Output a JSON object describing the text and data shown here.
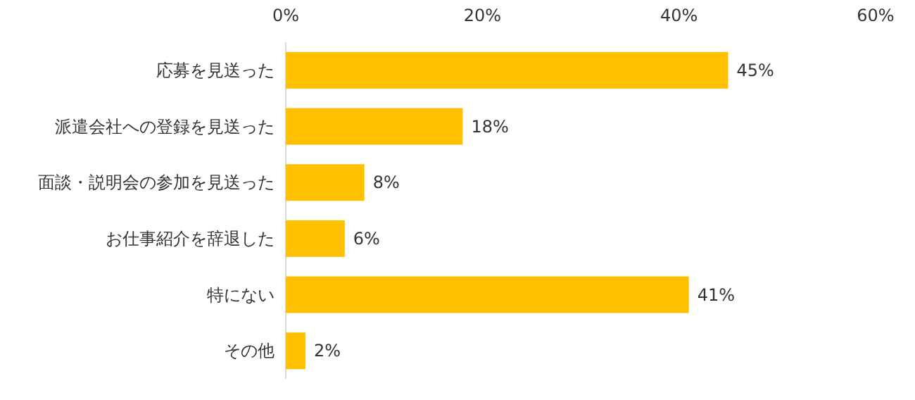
{
  "chart_data": {
    "type": "bar",
    "orientation": "horizontal",
    "categories": [
      "応募を見送った",
      "派遣会社への登録を見送った",
      "面談・説明会の参加を見送った",
      "お仕事紹介を辞退した",
      "特にない",
      "その他"
    ],
    "values": [
      45,
      18,
      8,
      6,
      41,
      2
    ],
    "value_labels": [
      "45%",
      "18%",
      "8%",
      "6%",
      "41%",
      "2%"
    ],
    "color": "#ffc000",
    "xlim": [
      0,
      60
    ],
    "xticks": [
      {
        "value": 0,
        "label": "0%"
      },
      {
        "value": 20,
        "label": "20%"
      },
      {
        "value": 40,
        "label": "40%"
      },
      {
        "value": 60,
        "label": "60%"
      }
    ],
    "grid": false
  }
}
